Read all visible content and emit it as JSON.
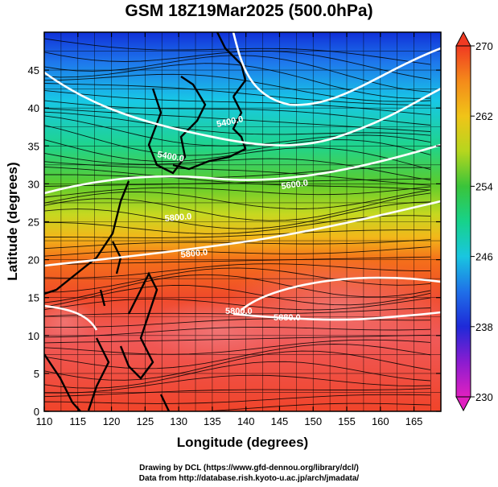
{
  "title": "GSM 18Z19Mar2025 (500.0hPa)",
  "x_axis": {
    "label": "Longitude (degrees)",
    "ticks": [
      "110",
      "115",
      "120",
      "125",
      "130",
      "135",
      "140",
      "145",
      "150",
      "155",
      "160",
      "165"
    ],
    "range": [
      110,
      169
    ]
  },
  "y_axis": {
    "label": "Latitude  (degrees)",
    "ticks": [
      "0",
      "5",
      "10",
      "15",
      "20",
      "25",
      "30",
      "35",
      "40",
      "45"
    ],
    "range": [
      0,
      50
    ]
  },
  "colorbar": {
    "ticks": [
      "230",
      "238",
      "246",
      "254",
      "262",
      "270"
    ],
    "range": [
      230,
      270
    ],
    "colors": [
      "#e020c0",
      "#8a1cd0",
      "#1e2ad8",
      "#1f70e8",
      "#19c6e0",
      "#17d28a",
      "#3ac43a",
      "#b6d61e",
      "#f0c418",
      "#f48a1a",
      "#f03a22"
    ]
  },
  "contour_labels": [
    "5400.0",
    "5400.0",
    "5600.0",
    "5800.0",
    "5800.0",
    "5800.0",
    "5880.0"
  ],
  "credits": [
    "Drawing by DCL (https://www.gfd-dennou.org/library/dcl/)",
    "Data from http://database.rish.kyoto-u.ac.jp/arch/jmadata/"
  ]
}
